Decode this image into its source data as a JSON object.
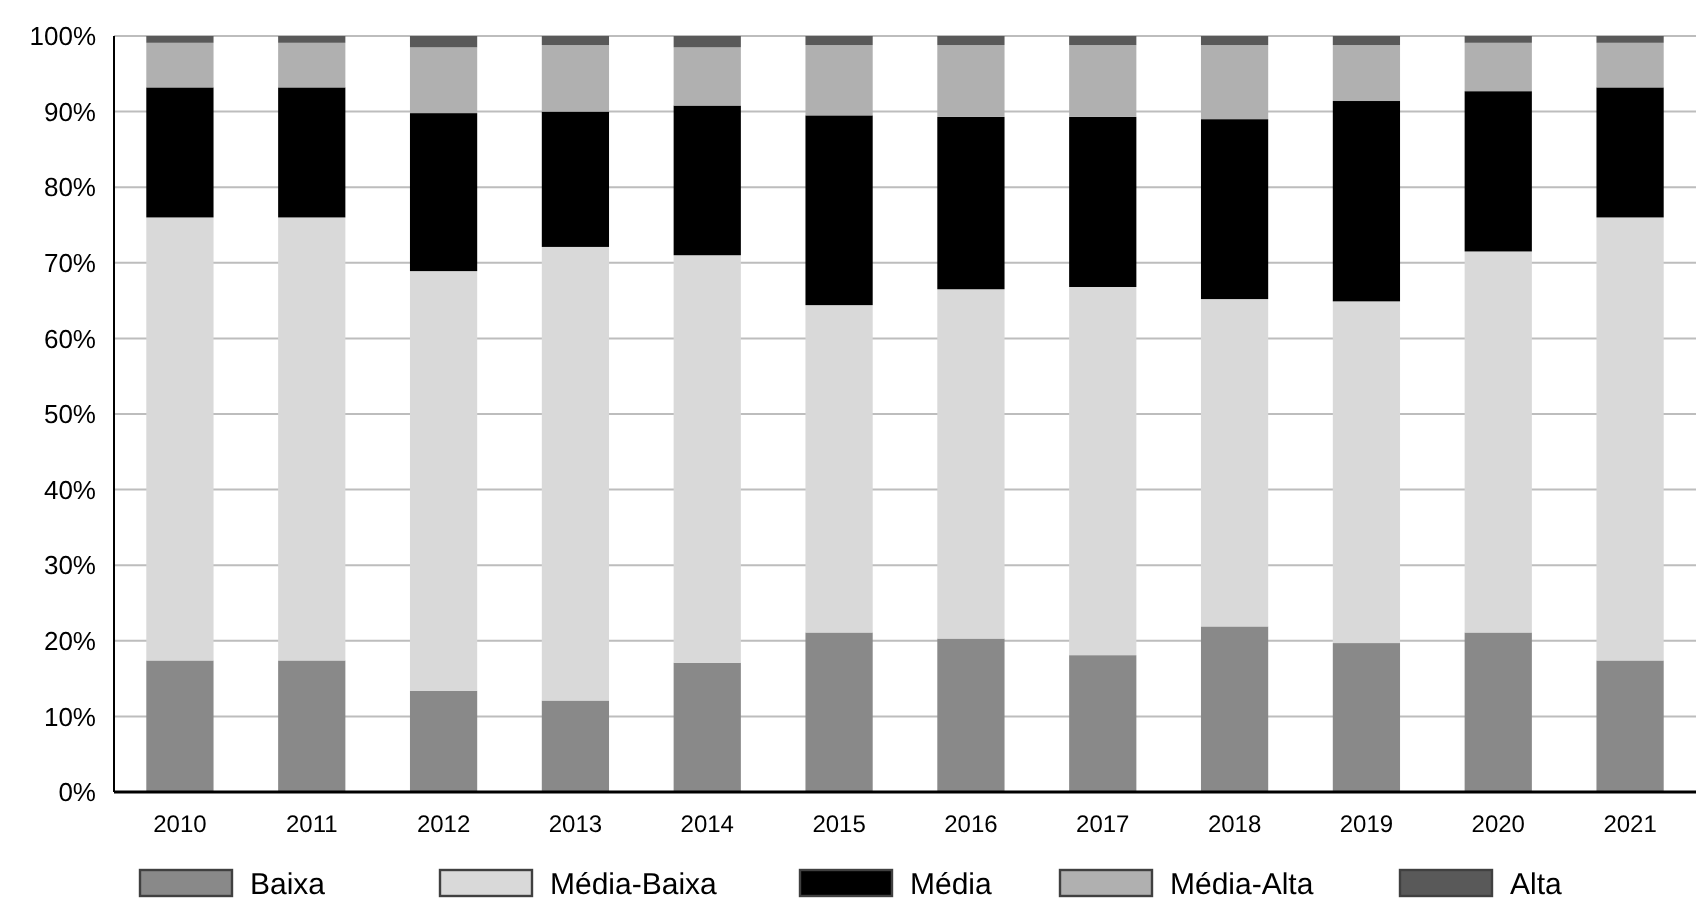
{
  "chart_data": {
    "type": "bar",
    "stacked": true,
    "categories": [
      "2010",
      "2011",
      "2012",
      "2013",
      "2014",
      "2015",
      "2016",
      "2017",
      "2018",
      "2019",
      "2020",
      "2021"
    ],
    "series": [
      {
        "name": "Baixa",
        "color": "#898989",
        "values": [
          17.4,
          17.4,
          13.4,
          12.1,
          17.1,
          21.1,
          20.3,
          18.1,
          21.9,
          19.7,
          21.1,
          17.4
        ]
      },
      {
        "name": "Média-Baixa",
        "color": "#d9d9d9",
        "values": [
          58.6,
          58.6,
          55.5,
          60.0,
          53.9,
          43.3,
          46.2,
          48.7,
          43.3,
          45.2,
          50.4,
          58.6
        ]
      },
      {
        "name": "Média",
        "color": "#000000",
        "values": [
          17.2,
          17.2,
          20.9,
          17.9,
          19.8,
          25.1,
          22.8,
          22.5,
          23.8,
          26.5,
          21.2,
          17.2
        ]
      },
      {
        "name": "Média-Alta",
        "color": "#b0b0b0",
        "values": [
          5.9,
          5.9,
          8.7,
          8.8,
          7.7,
          9.3,
          9.5,
          9.5,
          9.8,
          7.4,
          6.4,
          5.9
        ]
      },
      {
        "name": "Alta",
        "color": "#595959",
        "values": [
          0.9,
          0.9,
          1.5,
          1.2,
          1.5,
          1.2,
          1.2,
          1.2,
          1.2,
          1.2,
          0.9,
          0.9
        ]
      }
    ],
    "ylim": [
      0,
      100
    ],
    "yticks": [
      {
        "value": 0,
        "label": "0%"
      },
      {
        "value": 10,
        "label": "10%"
      },
      {
        "value": 20,
        "label": "20%"
      },
      {
        "value": 30,
        "label": "30%"
      },
      {
        "value": 40,
        "label": "40%"
      },
      {
        "value": 50,
        "label": "50%"
      },
      {
        "value": 60,
        "label": "60%"
      },
      {
        "value": 70,
        "label": "70%"
      },
      {
        "value": 80,
        "label": "80%"
      },
      {
        "value": 90,
        "label": "90%"
      },
      {
        "value": 100,
        "label": "100%"
      }
    ],
    "grid": "y",
    "legend": "bottom"
  }
}
